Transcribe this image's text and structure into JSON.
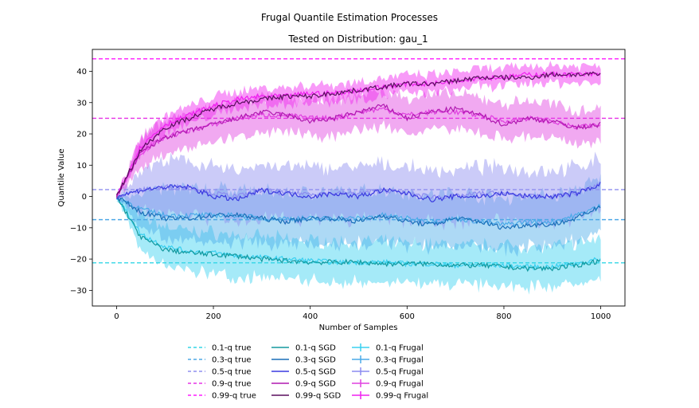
{
  "chart_data": {
    "type": "line",
    "title": "Frugal Quantile Estimation Processes",
    "subtitle": "Tested on Distribution: gau_1",
    "xlabel": "Number of Samples",
    "ylabel": "Quantile Value",
    "xlim": [
      -50,
      1050
    ],
    "ylim": [
      -35,
      47
    ],
    "xticks": [
      0,
      200,
      400,
      600,
      800,
      1000
    ],
    "yticks": [
      -30,
      -20,
      -10,
      0,
      10,
      20,
      30,
      40
    ],
    "grid": false,
    "legend_position": "bottom-center",
    "true_lines": [
      {
        "name": "0.1-q true",
        "value": -21.2,
        "color": "#33d6e6"
      },
      {
        "name": "0.3-q true",
        "value": -7.4,
        "color": "#4fa8e6"
      },
      {
        "name": "0.5-q true",
        "value": 2.2,
        "color": "#8f8fef"
      },
      {
        "name": "0.9-q true",
        "value": 25.0,
        "color": "#e633e6"
      },
      {
        "name": "0.99-q true",
        "value": 44.0,
        "color": "#ff1aff"
      }
    ],
    "sgd_series": [
      {
        "name": "0.1-q SGD",
        "color": "#13999e",
        "x": [
          0,
          50,
          100,
          150,
          200,
          250,
          300,
          350,
          400,
          450,
          500,
          550,
          600,
          650,
          700,
          750,
          800,
          850,
          900,
          950,
          1000
        ],
        "values": [
          0,
          -13,
          -17,
          -18,
          -18.5,
          -19,
          -20,
          -20.5,
          -21,
          -21,
          -21,
          -21.5,
          -21.5,
          -21.5,
          -22,
          -22,
          -22.5,
          -23,
          -23,
          -22,
          -20.5
        ]
      },
      {
        "name": "0.3-q SGD",
        "color": "#1a6fb8",
        "x": [
          0,
          50,
          100,
          150,
          200,
          250,
          300,
          350,
          400,
          450,
          500,
          550,
          600,
          650,
          700,
          750,
          800,
          850,
          900,
          950,
          1000
        ],
        "values": [
          0,
          -5,
          -7,
          -7,
          -6,
          -6,
          -7,
          -8,
          -7,
          -7,
          -8,
          -6,
          -8,
          -9,
          -7,
          -8,
          -10,
          -9,
          -9,
          -7,
          -3
        ]
      },
      {
        "name": "0.5-q SGD",
        "color": "#3a3ae0",
        "x": [
          0,
          50,
          100,
          150,
          200,
          250,
          300,
          350,
          400,
          450,
          500,
          550,
          600,
          650,
          700,
          750,
          800,
          850,
          900,
          950,
          1000
        ],
        "values": [
          0,
          2,
          3,
          3,
          0,
          -1,
          2,
          1,
          0,
          1,
          0,
          2,
          1,
          -1,
          0,
          0,
          1,
          0,
          0,
          1,
          4
        ]
      },
      {
        "name": "0.9-q SGD",
        "color": "#b018b0",
        "x": [
          0,
          50,
          100,
          150,
          200,
          250,
          300,
          350,
          400,
          450,
          500,
          550,
          600,
          650,
          700,
          750,
          800,
          850,
          900,
          950,
          1000
        ],
        "values": [
          0,
          14,
          19,
          21,
          23,
          25,
          27,
          26,
          24,
          25,
          27,
          29,
          25,
          27,
          28,
          26,
          23,
          25,
          24,
          22,
          23
        ]
      },
      {
        "name": "0.99-q SGD",
        "color": "#5a0f5e",
        "x": [
          0,
          50,
          100,
          150,
          200,
          250,
          300,
          350,
          400,
          450,
          500,
          550,
          600,
          650,
          700,
          750,
          800,
          850,
          900,
          950,
          1000
        ],
        "values": [
          0,
          15,
          22,
          25,
          28,
          30,
          31,
          32,
          32,
          33,
          34,
          35,
          36,
          36,
          37,
          38,
          38,
          38,
          39,
          39,
          39
        ]
      }
    ],
    "frugal_series": [
      {
        "name": "0.1-q Frugal",
        "color": "#38d0f0",
        "x": [
          0,
          50,
          100,
          150,
          200,
          250,
          300,
          350,
          400,
          450,
          500,
          550,
          600,
          650,
          700,
          750,
          800,
          850,
          900,
          950,
          1000
        ],
        "values": [
          0,
          -12,
          -16,
          -17.5,
          -18,
          -19,
          -19.5,
          -20,
          -20.5,
          -21,
          -21,
          -21,
          -21.5,
          -21.5,
          -22,
          -22,
          -22,
          -22.5,
          -22.5,
          -21.5,
          -20
        ],
        "spread": [
          0,
          6,
          7,
          7,
          7,
          7,
          7,
          7,
          7,
          7,
          7,
          7,
          7,
          7,
          7,
          7,
          7,
          7,
          7,
          7,
          7
        ]
      },
      {
        "name": "0.3-q Frugal",
        "color": "#4aaae8",
        "x": [
          0,
          50,
          100,
          150,
          200,
          250,
          300,
          350,
          400,
          450,
          500,
          550,
          600,
          650,
          700,
          750,
          800,
          850,
          900,
          950,
          1000
        ],
        "values": [
          0,
          -4,
          -6,
          -6,
          -6,
          -6,
          -7,
          -7,
          -7,
          -7,
          -7,
          -6,
          -7,
          -8,
          -7,
          -8,
          -9,
          -8,
          -8,
          -6,
          -3
        ],
        "spread": [
          0,
          6,
          9,
          9,
          9,
          9,
          9,
          9,
          9,
          9,
          9,
          9,
          9,
          9,
          9,
          9,
          9,
          9,
          9,
          9,
          9
        ]
      },
      {
        "name": "0.5-q Frugal",
        "color": "#8c8cf0",
        "x": [
          0,
          50,
          100,
          150,
          200,
          250,
          300,
          350,
          400,
          450,
          500,
          550,
          600,
          650,
          700,
          750,
          800,
          850,
          900,
          950,
          1000
        ],
        "values": [
          0,
          2,
          3,
          3,
          1,
          0,
          2,
          1,
          1,
          1,
          1,
          2,
          1,
          0,
          0,
          1,
          1,
          0,
          0,
          1,
          4
        ],
        "spread": [
          0,
          7,
          9,
          9,
          9,
          9,
          9,
          9,
          9,
          9,
          9,
          9,
          9,
          9,
          9,
          9,
          9,
          9,
          9,
          9,
          9
        ]
      },
      {
        "name": "0.9-q Frugal",
        "color": "#e040e0",
        "x": [
          0,
          50,
          100,
          150,
          200,
          250,
          300,
          350,
          400,
          450,
          500,
          550,
          600,
          650,
          700,
          750,
          800,
          850,
          900,
          950,
          1000
        ],
        "values": [
          0,
          14,
          19,
          21,
          23,
          25,
          26,
          26,
          25,
          25,
          27,
          28,
          26,
          27,
          27,
          26,
          24,
          25,
          24,
          22,
          23
        ],
        "spread": [
          0,
          5,
          6,
          6,
          6,
          6,
          6,
          6,
          6,
          6,
          6,
          6,
          6,
          6,
          6,
          6,
          6,
          6,
          6,
          6,
          6
        ]
      },
      {
        "name": "0.99-q Frugal",
        "color": "#f020f0",
        "x": [
          0,
          50,
          100,
          150,
          200,
          250,
          300,
          350,
          400,
          450,
          500,
          550,
          600,
          650,
          700,
          750,
          800,
          850,
          900,
          950,
          1000
        ],
        "values": [
          0,
          16,
          23,
          26,
          29,
          31,
          32,
          32,
          33,
          33,
          34,
          35,
          36,
          36,
          37,
          38,
          38,
          39,
          39,
          39,
          39
        ],
        "spread": [
          0,
          3,
          3,
          3,
          3,
          3,
          3,
          3,
          3,
          3,
          3,
          3,
          3,
          3,
          3,
          3,
          3,
          3,
          3,
          3,
          3
        ]
      }
    ]
  }
}
